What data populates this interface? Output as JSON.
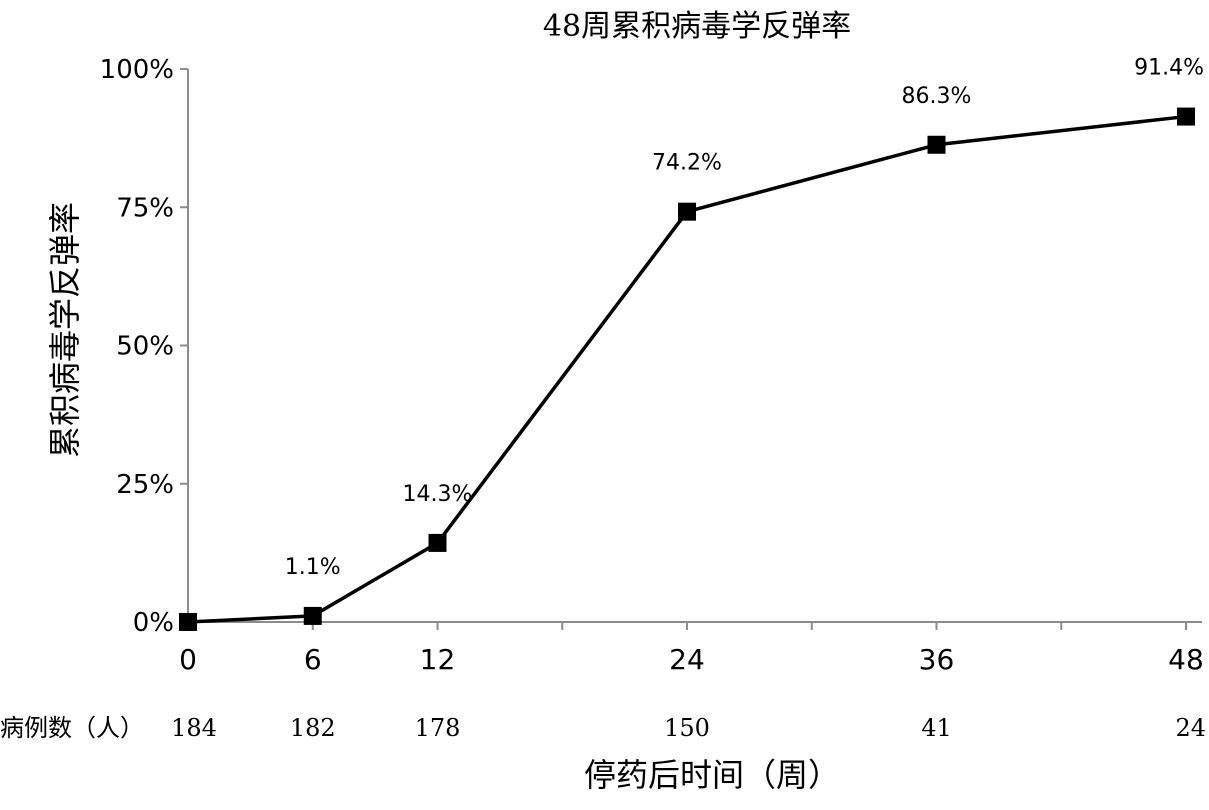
{
  "chart_data": {
    "type": "line",
    "title": "48周累积病毒学反弹率",
    "xlabel": "停药后时间（周）",
    "ylabel": "累积病毒学反弹率",
    "x": [
      0,
      6,
      12,
      24,
      36,
      48
    ],
    "values": [
      0,
      1.1,
      14.3,
      74.2,
      86.3,
      91.4
    ],
    "data_labels": [
      "",
      "1.1%",
      "14.3%",
      "74.2%",
      "86.3%",
      "91.4%"
    ],
    "x_ticks": [
      0,
      6,
      12,
      24,
      36,
      48
    ],
    "x_minor_ticks": [
      6,
      12,
      18,
      24,
      30,
      36,
      42,
      48
    ],
    "xlim": [
      0,
      48
    ],
    "y_ticks": [
      "0%",
      "25%",
      "50%",
      "75%",
      "100%"
    ],
    "y_tick_values": [
      0,
      25,
      50,
      75,
      100
    ],
    "ylim": [
      0,
      100
    ],
    "grid": false,
    "marker": "square",
    "line_color": "#000000",
    "cases_label": "病例数（人）",
    "cases": [
      "184",
      "182",
      "178",
      "150",
      "41",
      "24"
    ]
  }
}
